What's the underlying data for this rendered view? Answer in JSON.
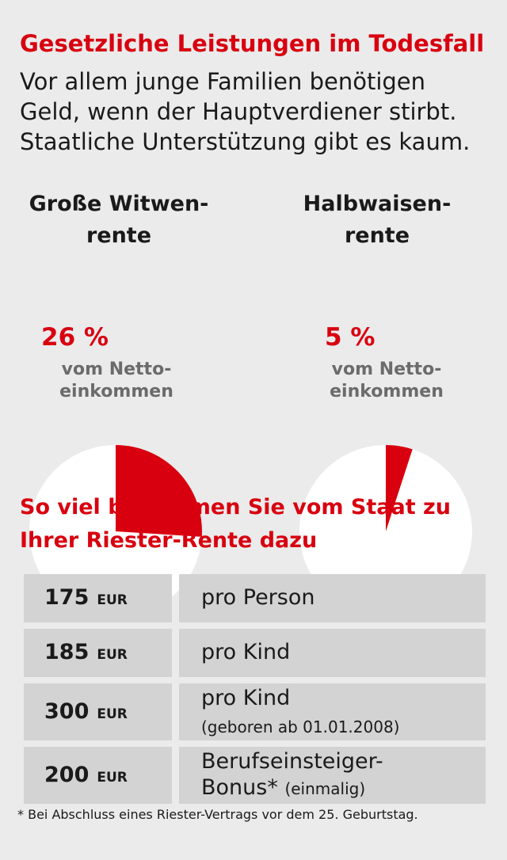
{
  "header": {
    "title": "Gesetzliche Leistungen im Todesfall",
    "intro_lines": [
      "Vor allem junge Familien benötigen",
      "Geld, wenn der Hauptverdiener stirbt.",
      "Staatliche Unterstützung gibt es kaum."
    ]
  },
  "chart_data": [
    {
      "type": "pie",
      "title_lines": [
        "Große Witwen-",
        "rente"
      ],
      "value_label": "26 %",
      "sub_label_lines": [
        "vom Netto-",
        "einkommen"
      ],
      "values": [
        26,
        74
      ],
      "colors": [
        "#d8000f",
        "#ffffff"
      ]
    },
    {
      "type": "pie",
      "title_lines": [
        "Halbwaisen-",
        "rente"
      ],
      "value_label": "5 %",
      "sub_label_lines": [
        "vom Netto-",
        "einkommen"
      ],
      "values": [
        5,
        95
      ],
      "colors": [
        "#d8000f",
        "#ffffff"
      ]
    }
  ],
  "riester": {
    "title_lines": [
      "So viel bekommen Sie vom Staat zu",
      "Ihrer Riester-Rente dazu"
    ],
    "rows": [
      {
        "amount": "175",
        "currency": "EUR",
        "desc": "pro Person",
        "note": ""
      },
      {
        "amount": "185",
        "currency": "EUR",
        "desc": "pro Kind",
        "note": ""
      },
      {
        "amount": "300",
        "currency": "EUR",
        "desc": "pro Kind",
        "note": "(geboren ab 01.01.2008)"
      },
      {
        "amount": "200",
        "currency": "EUR",
        "desc": "Berufseinsteiger-",
        "desc2": "Bonus*",
        "note": "(einmalig)"
      }
    ],
    "footnote": "* Bei Abschluss eines Riester-Vertrags vor dem 25. Geburtstag."
  },
  "colors": {
    "accent": "#d8000f",
    "background": "#ebebeb",
    "cell": "#d3d3d3"
  }
}
